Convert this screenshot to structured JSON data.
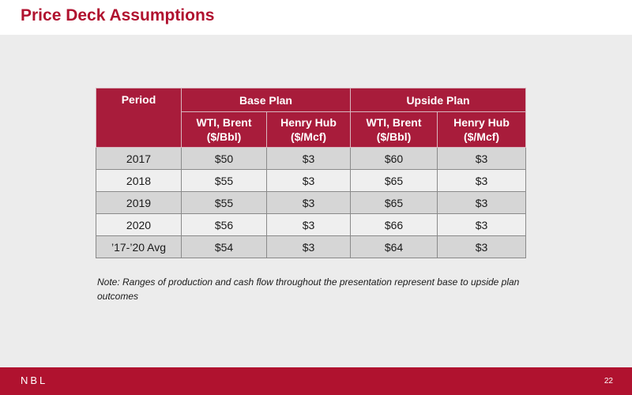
{
  "slide": {
    "title": "Price Deck Assumptions",
    "page_number": "22",
    "logo_text": "NBL",
    "note": "Note:  Ranges of production and cash flow throughout the presentation represent base to upside plan outcomes"
  },
  "table": {
    "period_header": "Period",
    "base_plan_header": "Base Plan",
    "upside_plan_header": "Upside Plan",
    "sub_headers": {
      "wti_brent_line1": "WTI, Brent",
      "wti_brent_line2": "($/Bbl)",
      "henry_hub_line1": "Henry Hub",
      "henry_hub_line2": "($/Mcf)"
    },
    "rows": [
      {
        "period": "2017",
        "base_wti": "$50",
        "base_hh": "$3",
        "up_wti": "$60",
        "up_hh": "$3"
      },
      {
        "period": "2018",
        "base_wti": "$55",
        "base_hh": "$3",
        "up_wti": "$65",
        "up_hh": "$3"
      },
      {
        "period": "2019",
        "base_wti": "$55",
        "base_hh": "$3",
        "up_wti": "$65",
        "up_hh": "$3"
      },
      {
        "period": "2020",
        "base_wti": "$56",
        "base_hh": "$3",
        "up_wti": "$66",
        "up_hh": "$3"
      },
      {
        "period": "’17-’20 Avg",
        "base_wti": "$54",
        "base_hh": "$3",
        "up_wti": "$64",
        "up_hh": "$3"
      }
    ]
  },
  "colors": {
    "brand_red": "#b0122f",
    "header_red": "#a81c3b"
  }
}
